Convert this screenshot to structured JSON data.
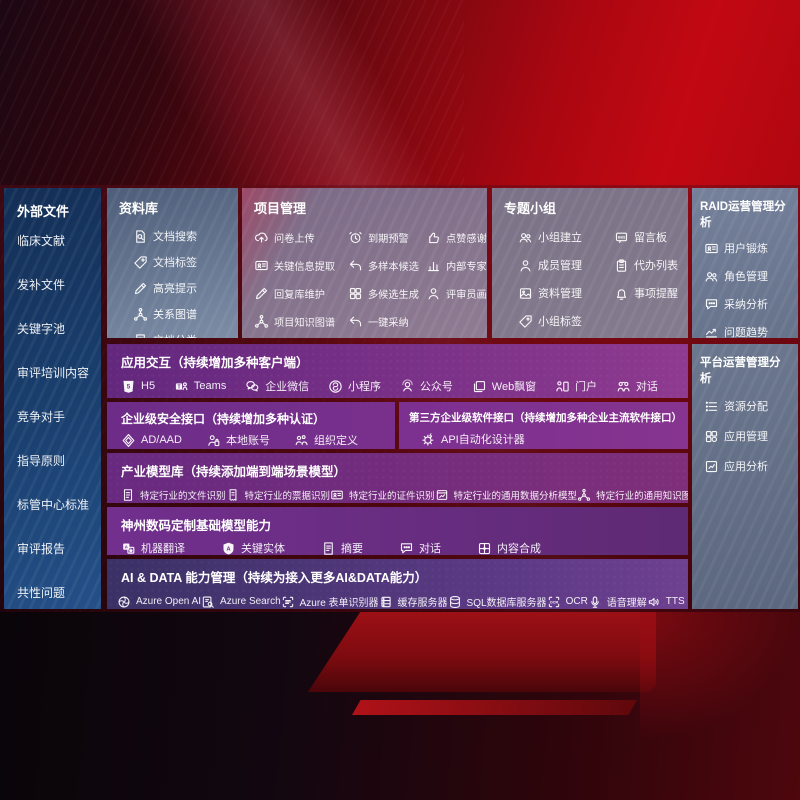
{
  "colors": {
    "background_red": "#b3070f",
    "panel_purple": "#6d2c88",
    "sidebar_blue": "#1a4070",
    "panel_gray_blue": "#6b778e"
  },
  "sidebar": {
    "title": "外部文件",
    "items": [
      "临床文献",
      "发补文件",
      "关键字池",
      "审评培训内容",
      "竞争对手",
      "指导原则",
      "标管中心标准",
      "审评报告",
      "共性问题"
    ]
  },
  "panels": {
    "ziliaoku": {
      "title": "资料库",
      "items": [
        {
          "icon": "doc-search",
          "label": "文档搜索"
        },
        {
          "icon": "tag",
          "label": "文档标签"
        },
        {
          "icon": "pencil",
          "label": "高亮提示"
        },
        {
          "icon": "graph",
          "label": "关系图谱"
        },
        {
          "icon": "doc-list",
          "label": "文档分类"
        }
      ]
    },
    "xiangmu": {
      "title": "项目管理",
      "items": [
        {
          "icon": "cloud-up",
          "label": "问卷上传"
        },
        {
          "icon": "alarm",
          "label": "到期预警"
        },
        {
          "icon": "thumb",
          "label": "点赞感谢"
        },
        {
          "icon": "id-card",
          "label": "关键信息提取"
        },
        {
          "icon": "reply",
          "label": "多样本候选"
        },
        {
          "icon": "rank",
          "label": "内部专家排名"
        },
        {
          "icon": "pencil",
          "label": "回复库维护"
        },
        {
          "icon": "grid",
          "label": "多候选生成"
        },
        {
          "icon": "person",
          "label": "评审员画像"
        },
        {
          "icon": "graph",
          "label": "项目知识图谱"
        },
        {
          "icon": "reply",
          "label": "一键采纳"
        }
      ]
    },
    "zhuanti": {
      "title": "专题小组",
      "items": [
        {
          "icon": "people",
          "label": "小组建立"
        },
        {
          "icon": "bbs",
          "label": "留言板"
        },
        {
          "icon": "person",
          "label": "成员管理"
        },
        {
          "icon": "clipboard",
          "label": "代办列表"
        },
        {
          "icon": "image",
          "label": "资料管理"
        },
        {
          "icon": "bell",
          "label": "事项提醒"
        },
        {
          "icon": "tag",
          "label": "小组标签"
        }
      ]
    },
    "raid": {
      "title": "RAID运营管理分析",
      "items": [
        {
          "icon": "id-card",
          "label": "用户锻炼"
        },
        {
          "icon": "people",
          "label": "角色管理"
        },
        {
          "icon": "chat-dots",
          "label": "采纳分析"
        },
        {
          "icon": "trend",
          "label": "问题趋势"
        }
      ]
    },
    "pingtai": {
      "title": "平台运营管理分析",
      "items": [
        {
          "icon": "list",
          "label": "资源分配"
        },
        {
          "icon": "apps",
          "label": "应用管理"
        },
        {
          "icon": "chart-doc",
          "label": "应用分析"
        }
      ]
    }
  },
  "rows": {
    "app": {
      "title": "应用交互（持续增加多种客户端）",
      "items": [
        {
          "icon": "h5",
          "label": "H5"
        },
        {
          "icon": "teams",
          "label": "Teams"
        },
        {
          "icon": "wechat",
          "label": "企业微信"
        },
        {
          "icon": "mini",
          "label": "小程序"
        },
        {
          "icon": "gzh",
          "label": "公众号"
        },
        {
          "icon": "window",
          "label": "Web飘窗"
        },
        {
          "icon": "door",
          "label": "门户"
        },
        {
          "icon": "dialog",
          "label": "对话"
        }
      ]
    },
    "security": {
      "title": "企业级安全接口（持续增加多种认证）",
      "items": [
        {
          "icon": "ad-shield",
          "label": "AD/AAD"
        },
        {
          "icon": "person-badge",
          "label": "本地账号"
        },
        {
          "icon": "org",
          "label": "组织定义"
        }
      ]
    },
    "third": {
      "title": "第三方企业级软件接口（持续增加多种企业主流软件接口）",
      "items": [
        {
          "icon": "api-gear",
          "label": "API自动化设计器"
        }
      ]
    },
    "industry": {
      "title": "产业模型库（持续添加端到端场景模型）",
      "items": [
        {
          "icon": "doc-list",
          "label": "特定行业的文件识别"
        },
        {
          "icon": "receipt",
          "label": "特定行业的票据识别"
        },
        {
          "icon": "id-card",
          "label": "特定行业的证件识别"
        },
        {
          "icon": "chart-window",
          "label": "特定行业的通用数据分析模型"
        },
        {
          "icon": "graph",
          "label": "特定行业的通用知识图谱模型"
        }
      ]
    },
    "dc": {
      "title": "神州数码定制基础模型能力",
      "items": [
        {
          "icon": "translate",
          "label": "机器翻译"
        },
        {
          "icon": "shield-a",
          "label": "关键实体"
        },
        {
          "icon": "summary",
          "label": "摘要"
        },
        {
          "icon": "chat-dots",
          "label": "对话"
        },
        {
          "icon": "merge",
          "label": "内容合成"
        }
      ]
    },
    "aidata": {
      "title": "AI & DATA 能力管理（持续为接入更多AI&DATA能力）",
      "items": [
        {
          "icon": "openai",
          "label": "Azure Open AI"
        },
        {
          "icon": "search-doc",
          "label": "Azure Search"
        },
        {
          "icon": "form-scan",
          "label": "Azure 表单识别器"
        },
        {
          "icon": "cache-server",
          "label": "缓存服务器"
        },
        {
          "icon": "sql-db",
          "label": "SQL数据库服务器"
        },
        {
          "icon": "ocr",
          "label": "OCR"
        },
        {
          "icon": "speech",
          "label": "语音理解"
        },
        {
          "icon": "tts",
          "label": "TTS"
        }
      ]
    }
  }
}
